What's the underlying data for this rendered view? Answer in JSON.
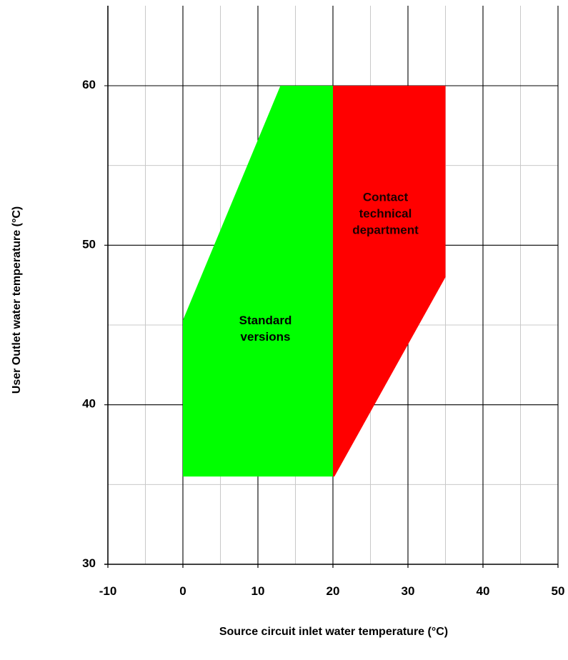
{
  "chart_data": {
    "type": "area",
    "xlabel": "Source circuit inlet water temperature (°C)",
    "ylabel": "User Outlet water temperature (°C)",
    "xlim": [
      -10,
      50
    ],
    "ylim": [
      30,
      64
    ],
    "x_ticks": [
      -10,
      0,
      10,
      20,
      30,
      40,
      50
    ],
    "y_ticks": [
      30,
      40,
      50,
      60
    ],
    "x_minor_step": 5,
    "y_minor_step": 5,
    "grid": true,
    "regions": [
      {
        "label_lines": [
          "Standard",
          "versions"
        ],
        "color": "#00ff00",
        "label_color": "#000000",
        "label_at": [
          11,
          44.8
        ],
        "polygon": [
          [
            0,
            35.5
          ],
          [
            0,
            45.3
          ],
          [
            13,
            60
          ],
          [
            20,
            60
          ],
          [
            20,
            35.5
          ]
        ]
      },
      {
        "label_lines": [
          "Contact",
          "technical",
          "department"
        ],
        "color": "#ff0000",
        "label_color": "#1a0000",
        "label_at": [
          27,
          52
        ],
        "polygon": [
          [
            20,
            35.5
          ],
          [
            20,
            60
          ],
          [
            35,
            60
          ],
          [
            35,
            48
          ],
          [
            20.2,
            35.5
          ]
        ]
      }
    ]
  }
}
